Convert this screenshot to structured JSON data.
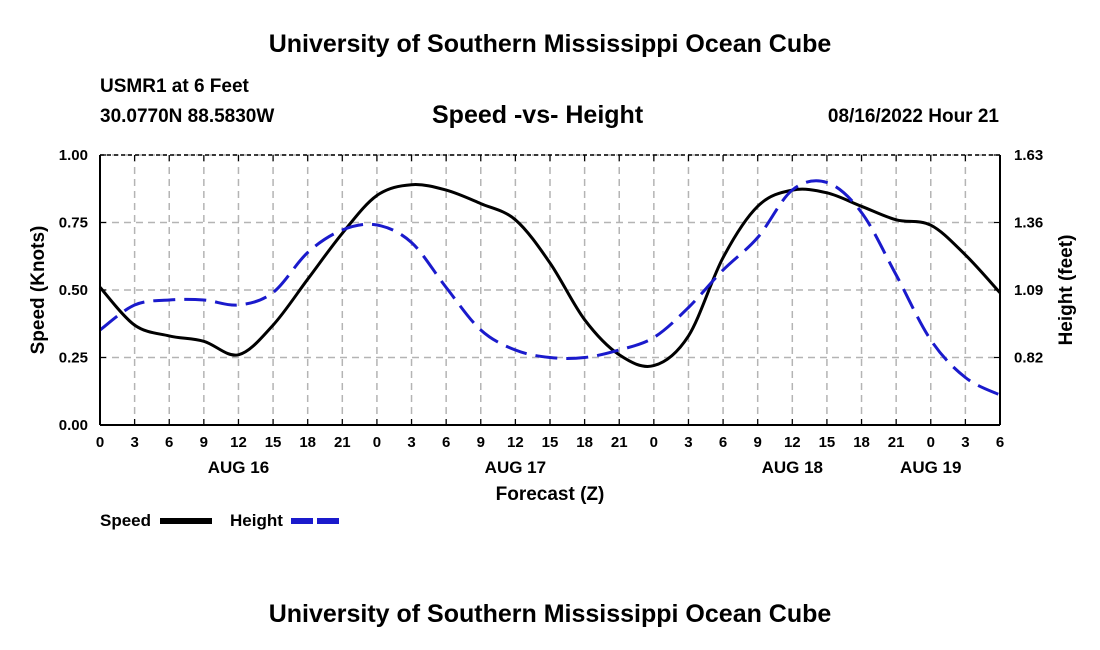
{
  "header": {
    "title": "University of Southern Mississippi Ocean Cube",
    "station": "USMR1 at 6 Feet",
    "coords": "30.0770N  88.5830W",
    "subtitle": "Speed -vs- Height",
    "datetime": "08/16/2022 Hour 21"
  },
  "footer": {
    "title": "University of Southern Mississippi Ocean Cube"
  },
  "colors": {
    "speed": "#000000",
    "height": "#1a1acc",
    "grid": "#b4b4b4"
  },
  "chart_data": {
    "type": "line",
    "title": "Speed -vs- Height",
    "xlabel": "Forecast (Z)",
    "ylabel_left": "Speed (Knots)",
    "ylabel_right": "Height (feet)",
    "x_unit": "hours since AUG 16 00Z",
    "xlim": [
      0,
      78
    ],
    "ylim_left": [
      0,
      1.0
    ],
    "ylim_right": [
      0.55,
      1.63
    ],
    "yticks_left": [
      "0.00",
      "0.25",
      "0.50",
      "0.75",
      "1.00"
    ],
    "yticks_right": [
      "0.82",
      "1.09",
      "1.36",
      "1.63"
    ],
    "yticks_right_values": [
      0.82,
      1.09,
      1.36,
      1.63
    ],
    "xticks": [
      "0",
      "3",
      "6",
      "9",
      "12",
      "15",
      "18",
      "21",
      "0",
      "3",
      "6",
      "9",
      "12",
      "15",
      "18",
      "21",
      "0",
      "3",
      "6",
      "9",
      "12",
      "15",
      "18",
      "21",
      "0",
      "3",
      "6"
    ],
    "date_labels": [
      {
        "text": "AUG 16",
        "x": 12
      },
      {
        "text": "AUG 17",
        "x": 36
      },
      {
        "text": "AUG 18",
        "x": 60
      },
      {
        "text": "AUG 19",
        "x": 72
      }
    ],
    "grid": true,
    "legend": [
      "Speed",
      "Height"
    ],
    "series": [
      {
        "name": "Speed",
        "axis": "left",
        "style": "solid",
        "x": [
          0,
          3,
          6,
          9,
          12,
          15,
          18,
          21,
          24,
          27,
          30,
          33,
          36,
          39,
          42,
          45,
          48,
          51,
          54,
          57,
          60,
          63,
          66,
          69,
          72,
          75,
          78
        ],
        "values": [
          0.51,
          0.37,
          0.33,
          0.31,
          0.26,
          0.37,
          0.54,
          0.71,
          0.85,
          0.89,
          0.87,
          0.82,
          0.76,
          0.6,
          0.39,
          0.26,
          0.22,
          0.33,
          0.62,
          0.81,
          0.87,
          0.86,
          0.81,
          0.76,
          0.74,
          0.63,
          0.49
        ]
      },
      {
        "name": "Height",
        "axis": "right",
        "style": "dashed",
        "x": [
          0,
          3,
          6,
          9,
          12,
          15,
          18,
          21,
          24,
          27,
          30,
          33,
          36,
          39,
          42,
          45,
          48,
          51,
          54,
          57,
          60,
          63,
          66,
          69,
          72,
          75,
          78
        ],
        "values": [
          0.93,
          1.03,
          1.05,
          1.05,
          1.03,
          1.08,
          1.24,
          1.33,
          1.35,
          1.28,
          1.1,
          0.93,
          0.85,
          0.82,
          0.82,
          0.85,
          0.9,
          1.02,
          1.17,
          1.3,
          1.49,
          1.52,
          1.4,
          1.15,
          0.89,
          0.74,
          0.67
        ]
      }
    ]
  }
}
